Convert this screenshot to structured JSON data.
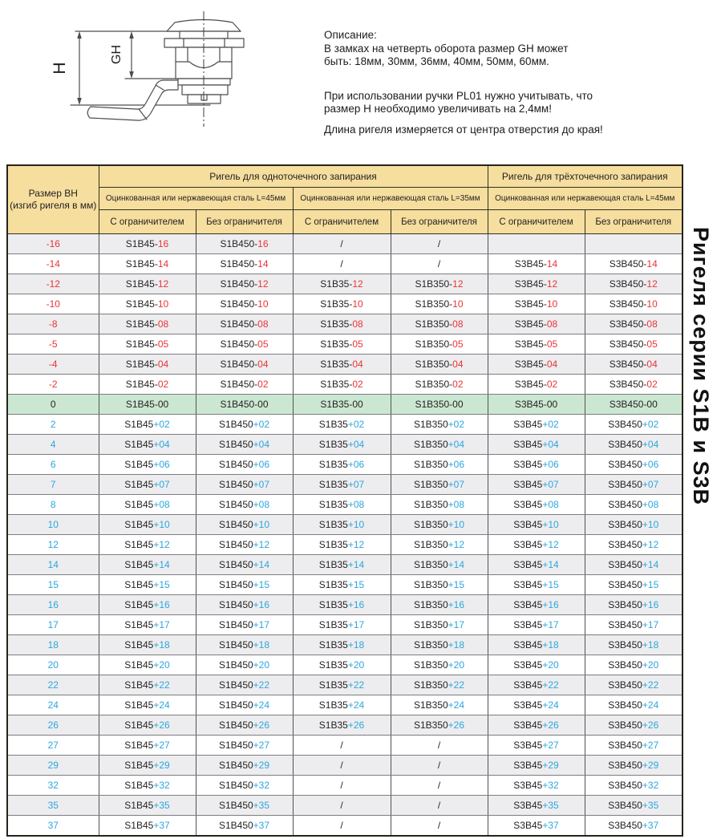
{
  "description": {
    "lines": [
      "Описание:",
      "В замках на четверть оборота размер GH может",
      "быть: 18мм, 30мм, 36мм, 40мм, 50мм, 60мм.",
      "При использовании ручки PL01 нужно учитывать, что",
      "размер Н необходимо увеличивать на 2,4мм!",
      "Длина ригеля измеряется от центра отверстия до края!"
    ]
  },
  "diagram": {
    "dim_h": "H",
    "dim_gh": "GH"
  },
  "side_title": "Ригеля серии S1B и S3B",
  "table": {
    "corner": {
      "line1": "Размер ВН",
      "line2": "(изгиб ригеля в мм)"
    },
    "groups": [
      "Ригель для одноточечного запирания",
      "Ригель для трёхточечного запирания"
    ],
    "subgroups": [
      "Оцинкованная или нержавеющая сталь  L=45мм",
      "Оцинкованная или нержавеющая сталь  L=35мм",
      "Оцинкованная или нержавеющая сталь  L=45мм"
    ],
    "columns": [
      "С ограничителем",
      "Без ограничителя",
      "С ограничителем",
      "Без ограничителя",
      "С ограничителем",
      "Без ограничителя"
    ],
    "colors": {
      "negative": "#ed3237",
      "positive": "#2ca6df",
      "neutral": "#231f20",
      "header_bg": "#f5de9e",
      "row_gray": "#ededef",
      "row_green": "#cbe7d1"
    },
    "rows": [
      {
        "size": "-16",
        "tone": "gray",
        "sign": "neg",
        "cells": [
          [
            "S1B45-",
            "16"
          ],
          [
            "S1B450-",
            "16"
          ],
          [
            "/",
            ""
          ],
          [
            "/",
            ""
          ],
          [
            "",
            ""
          ],
          [
            "",
            ""
          ]
        ]
      },
      {
        "size": "-14",
        "tone": "white",
        "sign": "neg",
        "cells": [
          [
            "S1B45-",
            "14"
          ],
          [
            "S1B450-",
            "14"
          ],
          [
            "/",
            ""
          ],
          [
            "/",
            ""
          ],
          [
            "S3B45-",
            "14"
          ],
          [
            "S3B450-",
            "14"
          ]
        ]
      },
      {
        "size": "-12",
        "tone": "gray",
        "sign": "neg",
        "cells": [
          [
            "S1B45-",
            "12"
          ],
          [
            "S1B450-",
            "12"
          ],
          [
            "S1B35-",
            "12"
          ],
          [
            "S1B350-",
            "12"
          ],
          [
            "S3B45-",
            "12"
          ],
          [
            "S3B450-",
            "12"
          ]
        ]
      },
      {
        "size": "-10",
        "tone": "white",
        "sign": "neg",
        "cells": [
          [
            "S1B45-",
            "10"
          ],
          [
            "S1B450-",
            "10"
          ],
          [
            "S1B35-",
            "10"
          ],
          [
            "S1B350-",
            "10"
          ],
          [
            "S3B45-",
            "10"
          ],
          [
            "S3B450-",
            "10"
          ]
        ]
      },
      {
        "size": "-8",
        "tone": "gray",
        "sign": "neg",
        "cells": [
          [
            "S1B45-",
            "08"
          ],
          [
            "S1B450-",
            "08"
          ],
          [
            "S1B35-",
            "08"
          ],
          [
            "S1B350-",
            "08"
          ],
          [
            "S3B45-",
            "08"
          ],
          [
            "S3B450-",
            "08"
          ]
        ]
      },
      {
        "size": "-5",
        "tone": "white",
        "sign": "neg",
        "cells": [
          [
            "S1B45-",
            "05"
          ],
          [
            "S1B450-",
            "05"
          ],
          [
            "S1B35-",
            "05"
          ],
          [
            "S1B350-",
            "05"
          ],
          [
            "S3B45-",
            "05"
          ],
          [
            "S3B450-",
            "05"
          ]
        ]
      },
      {
        "size": "-4",
        "tone": "gray",
        "sign": "neg",
        "cells": [
          [
            "S1B45-",
            "04"
          ],
          [
            "S1B450-",
            "04"
          ],
          [
            "S1B35-",
            "04"
          ],
          [
            "S1B350-",
            "04"
          ],
          [
            "S3B45-",
            "04"
          ],
          [
            "S3B450-",
            "04"
          ]
        ]
      },
      {
        "size": "-2",
        "tone": "white",
        "sign": "neg",
        "cells": [
          [
            "S1B45-",
            "02"
          ],
          [
            "S1B450-",
            "02"
          ],
          [
            "S1B35-",
            "02"
          ],
          [
            "S1B350-",
            "02"
          ],
          [
            "S3B45-",
            "02"
          ],
          [
            "S3B450-",
            "02"
          ]
        ]
      },
      {
        "size": "0",
        "tone": "green",
        "sign": "zero",
        "cells": [
          [
            "S1B45-00",
            ""
          ],
          [
            "S1B450-00",
            ""
          ],
          [
            "S1B35-00",
            ""
          ],
          [
            "S1B350-00",
            ""
          ],
          [
            "S3B45-00",
            ""
          ],
          [
            "S3B450-00",
            ""
          ]
        ]
      },
      {
        "size": "2",
        "tone": "white",
        "sign": "pos",
        "cells": [
          [
            "S1B45",
            "+02"
          ],
          [
            "S1B450",
            "+02"
          ],
          [
            "S1B35",
            "+02"
          ],
          [
            "S1B350",
            "+02"
          ],
          [
            "S3B45",
            "+02"
          ],
          [
            "S3B450",
            "+02"
          ]
        ]
      },
      {
        "size": "4",
        "tone": "gray",
        "sign": "pos",
        "cells": [
          [
            "S1B45",
            "+04"
          ],
          [
            "S1B450",
            "+04"
          ],
          [
            "S1B35",
            "+04"
          ],
          [
            "S1B350",
            "+04"
          ],
          [
            "S3B45",
            "+04"
          ],
          [
            "S3B450",
            "+04"
          ]
        ]
      },
      {
        "size": "6",
        "tone": "white",
        "sign": "pos",
        "cells": [
          [
            "S1B45",
            "+06"
          ],
          [
            "S1B450",
            "+06"
          ],
          [
            "S1B35",
            "+06"
          ],
          [
            "S1B350",
            "+06"
          ],
          [
            "S3B45",
            "+06"
          ],
          [
            "S3B450",
            "+06"
          ]
        ]
      },
      {
        "size": "7",
        "tone": "gray",
        "sign": "pos",
        "cells": [
          [
            "S1B45",
            "+07"
          ],
          [
            "S1B450",
            "+07"
          ],
          [
            "S1B35",
            "+07"
          ],
          [
            "S1B350",
            "+07"
          ],
          [
            "S3B45",
            "+07"
          ],
          [
            "S3B450",
            "+07"
          ]
        ]
      },
      {
        "size": "8",
        "tone": "white",
        "sign": "pos",
        "cells": [
          [
            "S1B45",
            "+08"
          ],
          [
            "S1B450",
            "+08"
          ],
          [
            "S1B35",
            "+08"
          ],
          [
            "S1B350",
            "+08"
          ],
          [
            "S3B45",
            "+08"
          ],
          [
            "S3B450",
            "+08"
          ]
        ]
      },
      {
        "size": "10",
        "tone": "gray",
        "sign": "pos",
        "cells": [
          [
            "S1B45",
            "+10"
          ],
          [
            "S1B450",
            "+10"
          ],
          [
            "S1B35",
            "+10"
          ],
          [
            "S1B350",
            "+10"
          ],
          [
            "S3B45",
            "+10"
          ],
          [
            "S3B450",
            "+10"
          ]
        ]
      },
      {
        "size": "12",
        "tone": "white",
        "sign": "pos",
        "cells": [
          [
            "S1B45",
            "+12"
          ],
          [
            "S1B450",
            "+12"
          ],
          [
            "S1B35",
            "+12"
          ],
          [
            "S1B350",
            "+12"
          ],
          [
            "S3B45",
            "+12"
          ],
          [
            "S3B450",
            "+12"
          ]
        ]
      },
      {
        "size": "14",
        "tone": "gray",
        "sign": "pos",
        "cells": [
          [
            "S1B45",
            "+14"
          ],
          [
            "S1B450",
            "+14"
          ],
          [
            "S1B35",
            "+14"
          ],
          [
            "S1B350",
            "+14"
          ],
          [
            "S3B45",
            "+14"
          ],
          [
            "S3B450",
            "+14"
          ]
        ]
      },
      {
        "size": "15",
        "tone": "white",
        "sign": "pos",
        "cells": [
          [
            "S1B45",
            "+15"
          ],
          [
            "S1B450",
            "+15"
          ],
          [
            "S1B35",
            "+15"
          ],
          [
            "S1B350",
            "+15"
          ],
          [
            "S3B45",
            "+15"
          ],
          [
            "S3B450",
            "+15"
          ]
        ]
      },
      {
        "size": "16",
        "tone": "gray",
        "sign": "pos",
        "cells": [
          [
            "S1B45",
            "+16"
          ],
          [
            "S1B450",
            "+16"
          ],
          [
            "S1B35",
            "+16"
          ],
          [
            "S1B350",
            "+16"
          ],
          [
            "S3B45",
            "+16"
          ],
          [
            "S3B450",
            "+16"
          ]
        ]
      },
      {
        "size": "17",
        "tone": "white",
        "sign": "pos",
        "cells": [
          [
            "S1B45",
            "+17"
          ],
          [
            "S1B450",
            "+17"
          ],
          [
            "S1B35",
            "+17"
          ],
          [
            "S1B350",
            "+17"
          ],
          [
            "S3B45",
            "+17"
          ],
          [
            "S3B450",
            "+17"
          ]
        ]
      },
      {
        "size": "18",
        "tone": "gray",
        "sign": "pos",
        "cells": [
          [
            "S1B45",
            "+18"
          ],
          [
            "S1B450",
            "+18"
          ],
          [
            "S1B35",
            "+18"
          ],
          [
            "S1B350",
            "+18"
          ],
          [
            "S3B45",
            "+18"
          ],
          [
            "S3B450",
            "+18"
          ]
        ]
      },
      {
        "size": "20",
        "tone": "white",
        "sign": "pos",
        "cells": [
          [
            "S1B45",
            "+20"
          ],
          [
            "S1B450",
            "+20"
          ],
          [
            "S1B35",
            "+20"
          ],
          [
            "S1B350",
            "+20"
          ],
          [
            "S3B45",
            "+20"
          ],
          [
            "S3B450",
            "+20"
          ]
        ]
      },
      {
        "size": "22",
        "tone": "gray",
        "sign": "pos",
        "cells": [
          [
            "S1B45",
            "+22"
          ],
          [
            "S1B450",
            "+22"
          ],
          [
            "S1B35",
            "+22"
          ],
          [
            "S1B350",
            "+22"
          ],
          [
            "S3B45",
            "+22"
          ],
          [
            "S3B450",
            "+22"
          ]
        ]
      },
      {
        "size": "24",
        "tone": "white",
        "sign": "pos",
        "cells": [
          [
            "S1B45",
            "+24"
          ],
          [
            "S1B450",
            "+24"
          ],
          [
            "S1B35",
            "+24"
          ],
          [
            "S1B350",
            "+24"
          ],
          [
            "S3B45",
            "+24"
          ],
          [
            "S3B450",
            "+24"
          ]
        ]
      },
      {
        "size": "26",
        "tone": "gray",
        "sign": "pos",
        "cells": [
          [
            "S1B45",
            "+26"
          ],
          [
            "S1B450",
            "+26"
          ],
          [
            "S1B35",
            "+26"
          ],
          [
            "S1B350",
            "+26"
          ],
          [
            "S3B45",
            "+26"
          ],
          [
            "S3B450",
            "+26"
          ]
        ]
      },
      {
        "size": "27",
        "tone": "white",
        "sign": "pos",
        "cells": [
          [
            "S1B45",
            "+27"
          ],
          [
            "S1B450",
            "+27"
          ],
          [
            "/",
            ""
          ],
          [
            "/",
            ""
          ],
          [
            "S3B45",
            "+27"
          ],
          [
            "S3B450",
            "+27"
          ]
        ]
      },
      {
        "size": "29",
        "tone": "gray",
        "sign": "pos",
        "cells": [
          [
            "S1B45",
            "+29"
          ],
          [
            "S1B450",
            "+29"
          ],
          [
            "/",
            ""
          ],
          [
            "/",
            ""
          ],
          [
            "S3B45",
            "+29"
          ],
          [
            "S3B450",
            "+29"
          ]
        ]
      },
      {
        "size": "32",
        "tone": "white",
        "sign": "pos",
        "cells": [
          [
            "S1B45",
            "+32"
          ],
          [
            "S1B450",
            "+32"
          ],
          [
            "/",
            ""
          ],
          [
            "/",
            ""
          ],
          [
            "S3B45",
            "+32"
          ],
          [
            "S3B450",
            "+32"
          ]
        ]
      },
      {
        "size": "35",
        "tone": "gray",
        "sign": "pos",
        "cells": [
          [
            "S1B45",
            "+35"
          ],
          [
            "S1B450",
            "+35"
          ],
          [
            "/",
            ""
          ],
          [
            "/",
            ""
          ],
          [
            "S3B45",
            "+35"
          ],
          [
            "S3B450",
            "+35"
          ]
        ]
      },
      {
        "size": "37",
        "tone": "white",
        "sign": "pos",
        "cells": [
          [
            "S1B45",
            "+37"
          ],
          [
            "S1B450",
            "+37"
          ],
          [
            "/",
            ""
          ],
          [
            "/",
            ""
          ],
          [
            "S3B45",
            "+37"
          ],
          [
            "S3B450",
            "+37"
          ]
        ]
      }
    ]
  }
}
